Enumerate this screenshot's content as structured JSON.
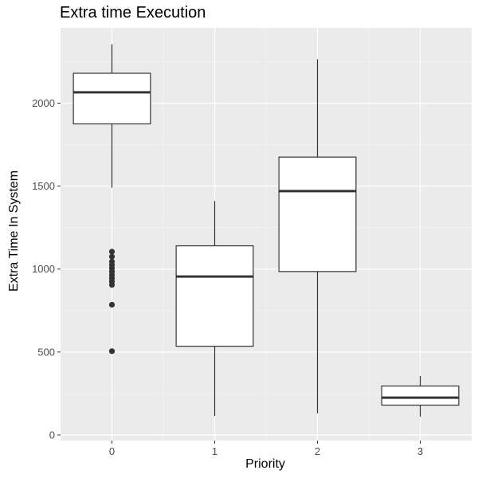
{
  "chart_data": {
    "type": "box",
    "title": "Extra time Execution",
    "xlabel": "Priority",
    "ylabel": "Extra Time In System",
    "categories": [
      "0",
      "1",
      "2",
      "3"
    ],
    "yticks": [
      0,
      500,
      1000,
      1500,
      2000
    ],
    "ylim": [
      0,
      2420
    ],
    "grid": true,
    "boxes": [
      {
        "category": "0",
        "whisker_low": 1490,
        "q1": 1875,
        "median": 2065,
        "q3": 2180,
        "whisker_high": 2355,
        "outliers": [
          505,
          785,
          905,
          925,
          945,
          965,
          985,
          1005,
          1025,
          1045,
          1075,
          1105
        ]
      },
      {
        "category": "1",
        "whisker_low": 115,
        "q1": 535,
        "median": 955,
        "q3": 1140,
        "whisker_high": 1410,
        "outliers": []
      },
      {
        "category": "2",
        "whisker_low": 130,
        "q1": 985,
        "median": 1470,
        "q3": 1675,
        "whisker_high": 2265,
        "outliers": []
      },
      {
        "category": "3",
        "whisker_low": 110,
        "q1": 180,
        "median": 225,
        "q3": 295,
        "whisker_high": 355,
        "outliers": []
      }
    ]
  }
}
